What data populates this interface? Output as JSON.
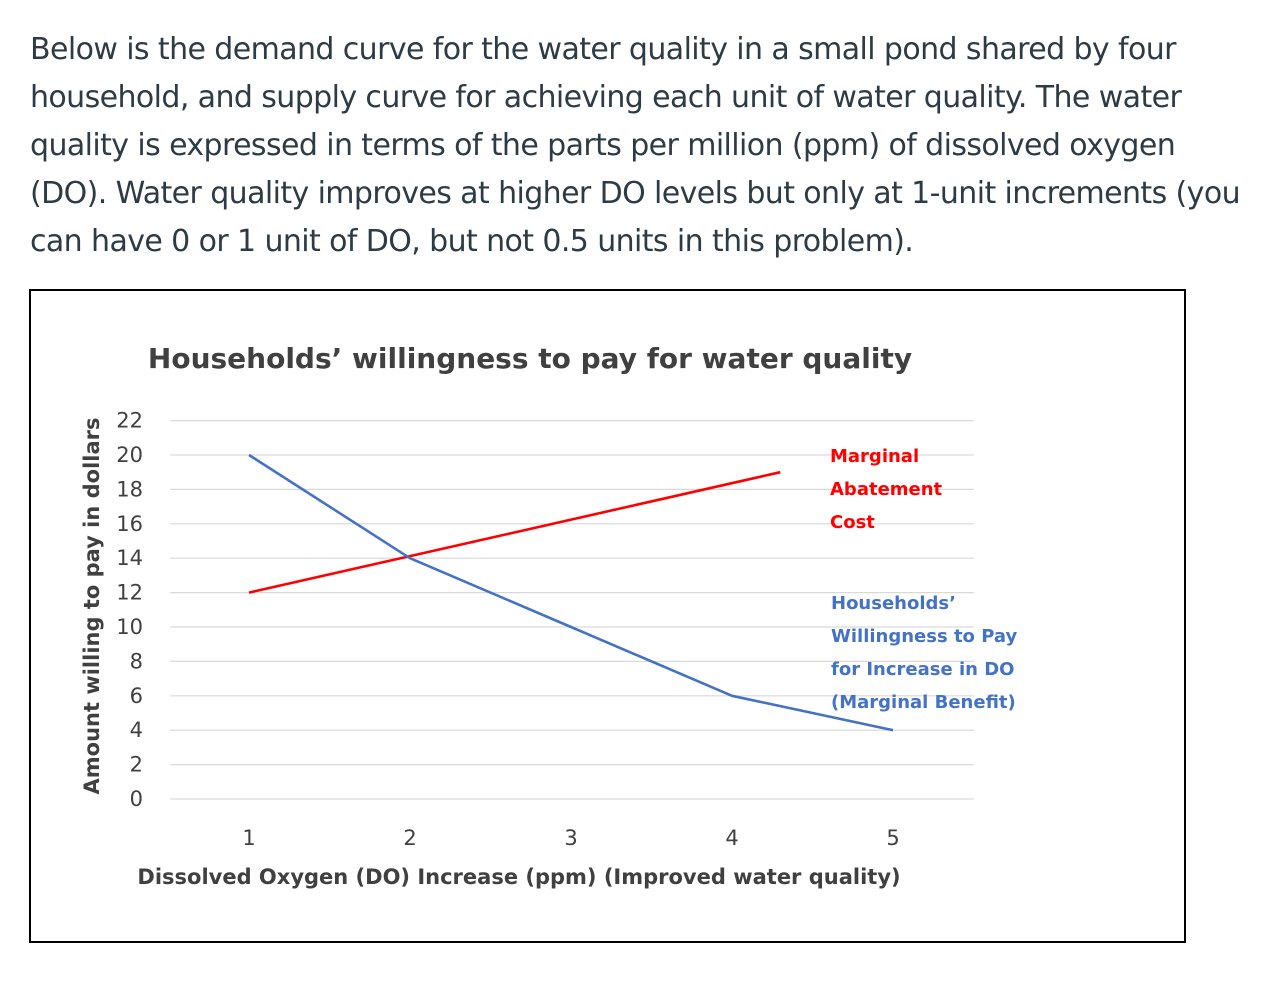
{
  "question": {
    "text": "Below is the demand curve for the water quality in a small pond shared by four household, and supply curve for achieving each unit of water quality. The water quality is expressed in terms of the parts per million (ppm) of dissolved oxygen (DO).  Water quality improves at higher DO levels but only at 1-unit increments (you can have 0 or 1 unit of DO, but not 0.5 units in this problem)."
  },
  "chart_data": {
    "type": "line",
    "title": "Households’ willingness to pay for water quality",
    "xlabel": "Dissolved Oxygen (DO) Increase (ppm) (Improved water quality)",
    "ylabel": "Amount willing to pay in dollars",
    "x_ticks": [
      "1",
      "2",
      "3",
      "4",
      "5"
    ],
    "y_ticks": [
      "0",
      "2",
      "4",
      "6",
      "8",
      "10",
      "12",
      "14",
      "16",
      "18",
      "20",
      "22"
    ],
    "xlim": [
      1,
      5
    ],
    "ylim": [
      0,
      22
    ],
    "grid": true,
    "series": [
      {
        "name": "Marginal Abatement Cost",
        "label_lines": [
          "Marginal",
          "Abatement",
          "Cost"
        ],
        "color": "#ff0000",
        "x": [
          1,
          4.3
        ],
        "y": [
          12,
          19
        ]
      },
      {
        "name": "Households’ Willingness to Pay for Increase in DO (Marginal Benefit)",
        "label_lines": [
          "Households’",
          "Willingness to Pay",
          "for Increase in DO",
          "(Marginal Benefit)"
        ],
        "color": "#4472c4",
        "x": [
          1,
          2,
          3,
          4,
          5
        ],
        "y": [
          20,
          14,
          10,
          6,
          4
        ]
      }
    ]
  }
}
